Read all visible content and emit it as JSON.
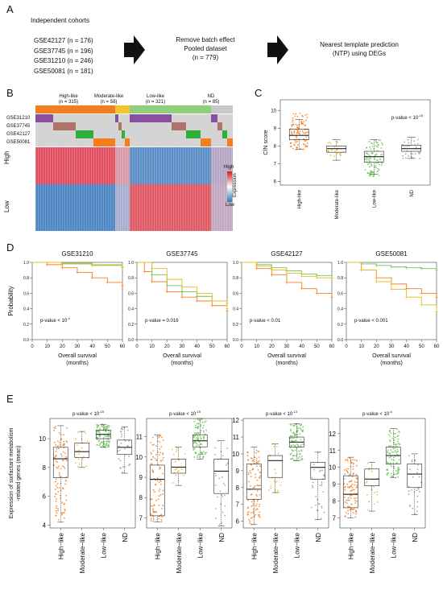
{
  "panels": {
    "A": "A",
    "B": "B",
    "C": "C",
    "D": "D",
    "E": "E"
  },
  "panelA": {
    "cohorts_title": "Independent cohorts",
    "cohorts": [
      "GSE42127 (n = 176)",
      "GSE37745 (n = 196)",
      "GSE31210 (n = 246)",
      "GSE50081 (n = 181)"
    ],
    "step2": [
      "Remove batch effect",
      "Pooled dataset",
      "(n = 779)"
    ],
    "step3": [
      "Nearest template prediction",
      "(NTP) using DEGs"
    ]
  },
  "panelB": {
    "groups": [
      {
        "label": "High-like",
        "n": "(n = 315)",
        "color": "#f47d20"
      },
      {
        "label": "Moderate-like",
        "n": "(n = 58)",
        "color": "#f2c52a"
      },
      {
        "label": "Low-like",
        "n": "(n = 321)",
        "color": "#8fcf79"
      },
      {
        "label": "ND",
        "n": "(n = 85)",
        "color": "#c8c8c8"
      }
    ],
    "cohort_rows": [
      "GSE31210",
      "GSE37745",
      "GSE42127",
      "GSE50081"
    ],
    "cohort_colors": [
      "#8a4fa0",
      "#b0736a",
      "#2fae3a",
      "#f47d20"
    ],
    "row_labels": [
      "High",
      "Low"
    ],
    "legend_top": "High",
    "legend_bottom": "Low",
    "legend_title": "Expression"
  },
  "panelC": {
    "ylabel": "CIN score",
    "pvalue": "p-value < 10",
    "pvalue_exp": "-16",
    "yticks": [
      "6",
      "7",
      "8",
      "9",
      "10"
    ],
    "categories": [
      "High-like",
      "Moderate-like",
      "Low-like",
      "ND"
    ]
  },
  "panelD": {
    "ylabel": "Probability",
    "xlabel_line1": "Overall survival",
    "xlabel_line2": "(months)",
    "xticks": [
      "0",
      "10",
      "20",
      "30",
      "40",
      "50",
      "60"
    ],
    "yticks": [
      "0.0",
      "0.2",
      "0.4",
      "0.6",
      "0.8",
      "1.0"
    ],
    "plots": [
      {
        "title": "GSE31210",
        "pvalue": "p-value < 10",
        "pexp": "-4"
      },
      {
        "title": "GSE37745",
        "pvalue": "p-value = 0.016",
        "pexp": ""
      },
      {
        "title": "GSE42127",
        "pvalue": "p-value < 0.01",
        "pexp": ""
      },
      {
        "title": "GSE50081",
        "pvalue": "p-value < 0.001",
        "pexp": ""
      }
    ]
  },
  "panelE": {
    "ylabel_line1": "Expression of surfactant metabolism",
    "ylabel_line2": "-related genes (mean)",
    "categories": [
      "High−like",
      "Moderate−like",
      "Low−like",
      "ND"
    ],
    "plots": [
      {
        "pvalue": "p-value < 10",
        "pexp": "-15",
        "yticks": [
          "4",
          "6",
          "8",
          "10"
        ]
      },
      {
        "pvalue": "p-value < 10",
        "pexp": "-15",
        "yticks": [
          "7",
          "8",
          "9",
          "10",
          "11"
        ]
      },
      {
        "pvalue": "p-value < 10",
        "pexp": "-13",
        "yticks": [
          "6",
          "7",
          "8",
          "9",
          "10",
          "11",
          "12"
        ]
      },
      {
        "pvalue": "p-value < 10",
        "pexp": "-6",
        "yticks": [
          "7",
          "8",
          "9",
          "10",
          "11",
          "12"
        ]
      }
    ]
  },
  "colors": {
    "high": "#f47d20",
    "moderate": "#e8b820",
    "low": "#6cc45a",
    "nd": "#9a9a9a"
  }
}
